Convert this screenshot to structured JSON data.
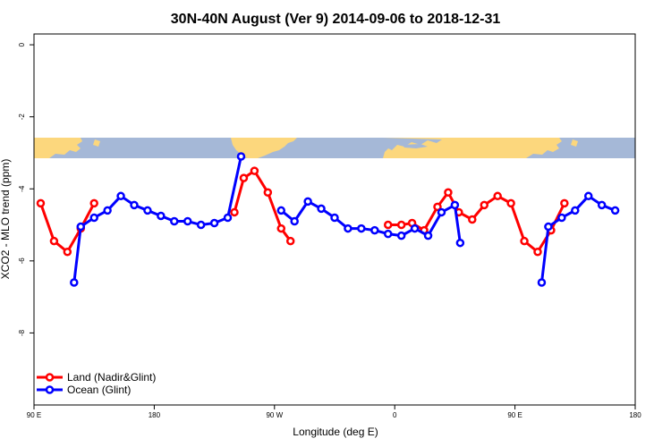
{
  "chart_data": {
    "type": "line",
    "title": "30N-40N August (Ver 9)   2014-09-06 to 2018-12-31",
    "xlabel": "Longitude (deg E)",
    "ylabel": "XCO2 - MLO trend (ppm)",
    "xlim": [
      90,
      540
    ],
    "ylim": [
      -10,
      0.3
    ],
    "x_ticks": [
      {
        "value": 90,
        "label": "90 E"
      },
      {
        "value": 180,
        "label": "180"
      },
      {
        "value": 270,
        "label": "90 W"
      },
      {
        "value": 360,
        "label": "0"
      },
      {
        "value": 450,
        "label": "90 E"
      },
      {
        "value": 540,
        "label": "180"
      }
    ],
    "y_ticks": [
      {
        "value": 0,
        "label": "0"
      },
      {
        "value": -2,
        "label": "-2"
      },
      {
        "value": -4,
        "label": "-4"
      },
      {
        "value": -6,
        "label": "-6"
      },
      {
        "value": -8,
        "label": "-8"
      }
    ],
    "legend_position": "bottom-left",
    "grid": false,
    "series": [
      {
        "name": "Land (Nadir&Glint)",
        "color": "#ff0000",
        "segments": [
          [
            [
              95,
              -4.4
            ],
            [
              105,
              -5.45
            ],
            [
              115,
              -5.75
            ],
            [
              125,
              -5.1
            ],
            [
              135,
              -4.4
            ]
          ],
          [
            [
              240,
              -4.65
            ],
            [
              247,
              -3.7
            ],
            [
              255,
              -3.5
            ],
            [
              265,
              -4.1
            ],
            [
              275,
              -5.1
            ],
            [
              282,
              -5.45
            ]
          ],
          [
            [
              355,
              -5.0
            ],
            [
              365,
              -5.0
            ],
            [
              373,
              -4.95
            ],
            [
              382,
              -5.15
            ],
            [
              392,
              -4.5
            ],
            [
              400,
              -4.1
            ],
            [
              408,
              -4.65
            ],
            [
              418,
              -4.85
            ],
            [
              427,
              -4.45
            ],
            [
              437,
              -4.2
            ],
            [
              447,
              -4.4
            ],
            [
              457,
              -5.45
            ],
            [
              467,
              -5.75
            ],
            [
              477,
              -5.15
            ],
            [
              487,
              -4.4
            ]
          ]
        ]
      },
      {
        "name": "Ocean (Glint)",
        "color": "#0000ff",
        "segments": [
          [
            [
              120,
              -6.6
            ],
            [
              125,
              -5.05
            ],
            [
              135,
              -4.8
            ],
            [
              145,
              -4.6
            ],
            [
              155,
              -4.2
            ],
            [
              165,
              -4.45
            ],
            [
              175,
              -4.6
            ],
            [
              185,
              -4.75
            ],
            [
              195,
              -4.9
            ],
            [
              205,
              -4.9
            ],
            [
              215,
              -5.0
            ],
            [
              225,
              -4.95
            ],
            [
              235,
              -4.8
            ],
            [
              245,
              -3.1
            ]
          ],
          [
            [
              275,
              -4.6
            ],
            [
              285,
              -4.9
            ],
            [
              295,
              -4.35
            ],
            [
              305,
              -4.55
            ],
            [
              315,
              -4.8
            ],
            [
              325,
              -5.1
            ],
            [
              335,
              -5.1
            ],
            [
              345,
              -5.15
            ],
            [
              355,
              -5.25
            ],
            [
              365,
              -5.3
            ],
            [
              375,
              -5.1
            ],
            [
              385,
              -5.3
            ],
            [
              395,
              -4.65
            ],
            [
              405,
              -4.45
            ],
            [
              409,
              -5.5
            ]
          ],
          [
            [
              470,
              -6.6
            ],
            [
              475,
              -5.05
            ],
            [
              485,
              -4.8
            ],
            [
              495,
              -4.6
            ],
            [
              505,
              -4.2
            ],
            [
              515,
              -4.45
            ],
            [
              525,
              -4.6
            ]
          ]
        ]
      }
    ]
  }
}
